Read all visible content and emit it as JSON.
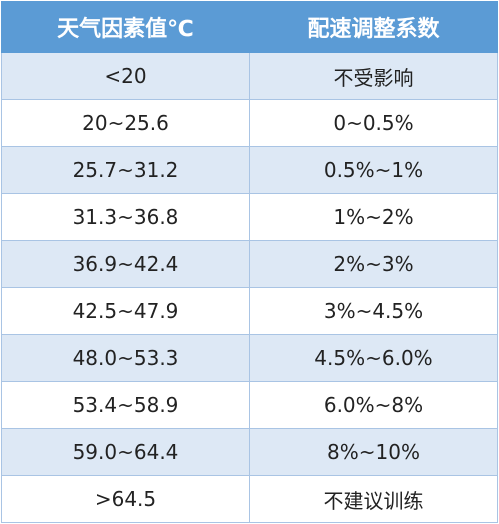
{
  "table": {
    "header": [
      "天气因素值℃",
      "配速调整系数"
    ],
    "rows": [
      [
        "<20",
        "不受影响"
      ],
      [
        "20~25.6",
        "0~0.5%"
      ],
      [
        "25.7~31.2",
        "0.5%~1%"
      ],
      [
        "31.3~36.8",
        "1%~2%"
      ],
      [
        "36.9~42.4",
        "2%~3%"
      ],
      [
        "42.5~47.9",
        "3%~4.5%"
      ],
      [
        "48.0~53.3",
        "4.5%~6.0%"
      ],
      [
        "53.4~58.9",
        "6.0%~8%"
      ],
      [
        "59.0~64.4",
        "8%~10%"
      ],
      [
        ">64.5",
        "不建议训练"
      ]
    ]
  }
}
